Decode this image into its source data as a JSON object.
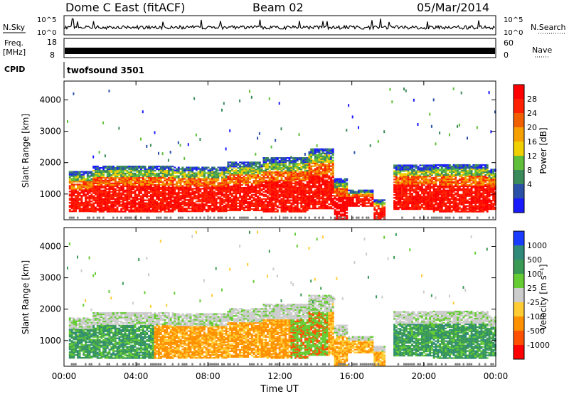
{
  "header": {
    "title": "Dome C East (fitACF)",
    "beam": "Beam 02",
    "date": "05/Mar/2014"
  },
  "top_panels": {
    "nsky_label": "N.Sky",
    "nsky_ticks": [
      "10^5",
      "10^0"
    ],
    "nsearch_label": "N.Search",
    "nsearch_ticks": [
      "10^5",
      "10^0"
    ],
    "freq_label": "Freq.",
    "freq_unit": "[MHz]",
    "freq_ticks": [
      "18",
      "8"
    ],
    "nave_label": "Nave",
    "nave_ticks": [
      "60",
      "0"
    ],
    "cpid_label": "CPID",
    "cpid_value": "twofsound 3501"
  },
  "colors": {
    "power_scale": [
      "#1a1aff",
      "#2a50a8",
      "#3b8a5a",
      "#5fbf3a",
      "#f0d000",
      "#f5a000",
      "#f06000",
      "#ff2000",
      "#ff0000"
    ],
    "velocity_scale": [
      "#ff0000",
      "#ff5000",
      "#ff9000",
      "#ffcc33",
      "#cccccc",
      "#66cc33",
      "#3a9a55",
      "#2f8a7a",
      "#1a3cff"
    ]
  },
  "chart_data": [
    {
      "type": "heatmap",
      "name": "power",
      "ylabel": "Slant Range [km]",
      "yticks": [
        1000,
        2000,
        3000,
        4000
      ],
      "ylim": [
        180,
        4600
      ],
      "xlim": [
        0,
        24
      ],
      "xticks": [
        "00:00",
        "04:00",
        "08:00",
        "12:00",
        "16:00",
        "20:00",
        "00:00"
      ],
      "colorbar": {
        "label": "Power [dB]",
        "ticks": [
          "28",
          "24",
          "20",
          "16",
          "12",
          "8",
          "4"
        ],
        "range": [
          0,
          32
        ]
      }
    },
    {
      "type": "heatmap",
      "name": "velocity",
      "ylabel": "Slant Range [km]",
      "yticks": [
        1000,
        2000,
        3000,
        4000
      ],
      "ylim": [
        180,
        4600
      ],
      "xlim": [
        0,
        24
      ],
      "xlabel": "Time UT",
      "xticks": [
        "00:00",
        "04:00",
        "08:00",
        "12:00",
        "16:00",
        "20:00",
        "00:00"
      ],
      "colorbar": {
        "label": "Velocity [m s⁻¹]",
        "ticks": [
          "1000",
          "500",
          "100",
          "25",
          "-25",
          "-100",
          "-500",
          "-1000"
        ]
      }
    }
  ]
}
